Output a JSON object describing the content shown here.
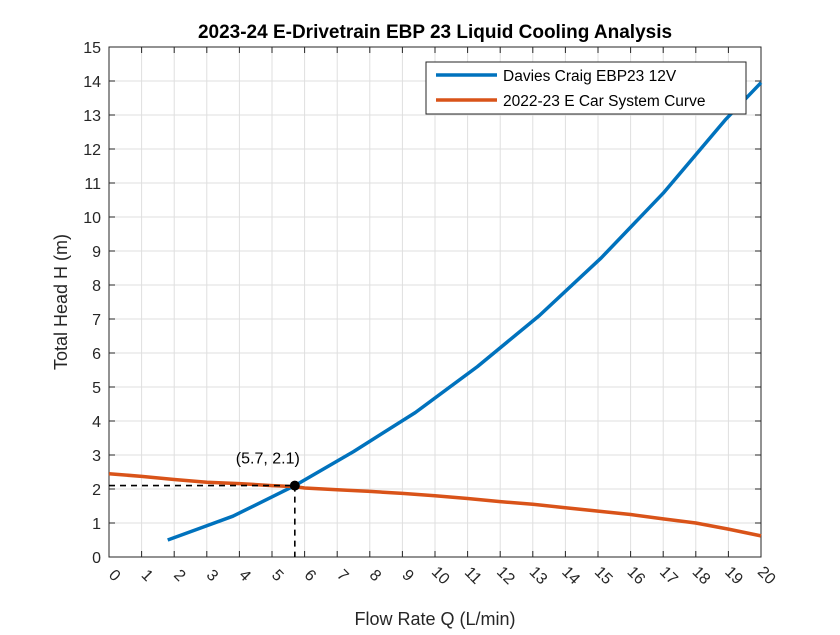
{
  "chart_data": {
    "type": "line",
    "title": "2023-24 E-Drivetrain EBP 23 Liquid Cooling Analysis",
    "xlabel": "Flow Rate Q (L/min)",
    "ylabel": "Total Head H (m)",
    "xlim": [
      0,
      20
    ],
    "ylim": [
      0,
      15
    ],
    "xticks": [
      0,
      1,
      2,
      3,
      4,
      5,
      6,
      7,
      8,
      9,
      10,
      11,
      12,
      13,
      14,
      15,
      16,
      17,
      18,
      19,
      20
    ],
    "yticks": [
      0,
      1,
      2,
      3,
      4,
      5,
      6,
      7,
      8,
      9,
      10,
      11,
      12,
      13,
      14,
      15
    ],
    "grid": true,
    "legend_position": "top-right",
    "series": [
      {
        "name": "Davies Craig EBP23 12V",
        "color": "#0072BD",
        "x": [
          1.8,
          2.8,
          3.8,
          5.7,
          7.5,
          9.4,
          11.3,
          13.2,
          15.1,
          17.0,
          18.9,
          20.0
        ],
        "y": [
          0.5,
          0.85,
          1.2,
          2.1,
          3.1,
          4.25,
          5.6,
          7.1,
          8.8,
          10.7,
          12.85,
          13.95
        ]
      },
      {
        "name": "2022-23 E Car System Curve",
        "color": "#D95319",
        "x": [
          0,
          1,
          2,
          3,
          4,
          5,
          5.7,
          6,
          7,
          8,
          9,
          10,
          11,
          12,
          13,
          14,
          15,
          16,
          17,
          18,
          19,
          20
        ],
        "y": [
          2.45,
          2.37,
          2.28,
          2.2,
          2.16,
          2.1,
          2.07,
          2.03,
          1.98,
          1.93,
          1.87,
          1.8,
          1.72,
          1.63,
          1.55,
          1.45,
          1.35,
          1.25,
          1.12,
          1.0,
          0.82,
          0.62
        ]
      }
    ],
    "annotations": [
      {
        "label": "(5.7, 2.1)",
        "x": 5.7,
        "y": 2.1,
        "marker": "filled-circle",
        "guide_lines": "dashed"
      }
    ]
  }
}
